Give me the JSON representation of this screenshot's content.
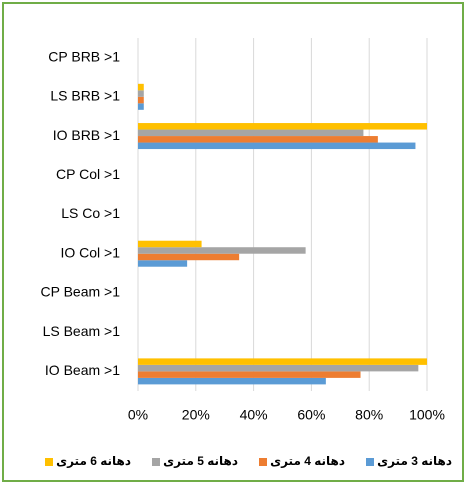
{
  "chart_data": {
    "type": "bar",
    "orientation": "horizontal",
    "categories": [
      "CP BRB >1",
      "LS BRB >1",
      "IO BRB >1",
      "CP Col >1",
      "LS Co >1",
      "IO Col >1",
      "CP Beam >1",
      "LS Beam >1",
      "IO Beam >1"
    ],
    "series": [
      {
        "name": "دهانه 3 متری",
        "color": "#5b9bd5",
        "values": [
          0,
          2,
          96,
          0,
          0,
          17,
          0,
          0,
          65
        ]
      },
      {
        "name": "دهانه 4 متری",
        "color": "#ed7d31",
        "values": [
          0,
          2,
          83,
          0,
          0,
          35,
          0,
          0,
          77
        ]
      },
      {
        "name": "دهانه 5 متری",
        "color": "#a5a5a5",
        "values": [
          0,
          2,
          78,
          0,
          0,
          58,
          0,
          0,
          97
        ]
      },
      {
        "name": "دهانه 6 متری",
        "color": "#ffc000",
        "values": [
          0,
          2,
          100,
          0,
          0,
          22,
          0,
          0,
          100
        ]
      }
    ],
    "xlim": [
      0,
      100
    ],
    "xticks": [
      {
        "value": 0,
        "label": "0%"
      },
      {
        "value": 20,
        "label": "20%"
      },
      {
        "value": 40,
        "label": "40%"
      },
      {
        "value": 60,
        "label": "60%"
      },
      {
        "value": 80,
        "label": "80%"
      },
      {
        "value": 100,
        "label": "100%"
      }
    ],
    "grid": true,
    "legend": "bottom"
  }
}
